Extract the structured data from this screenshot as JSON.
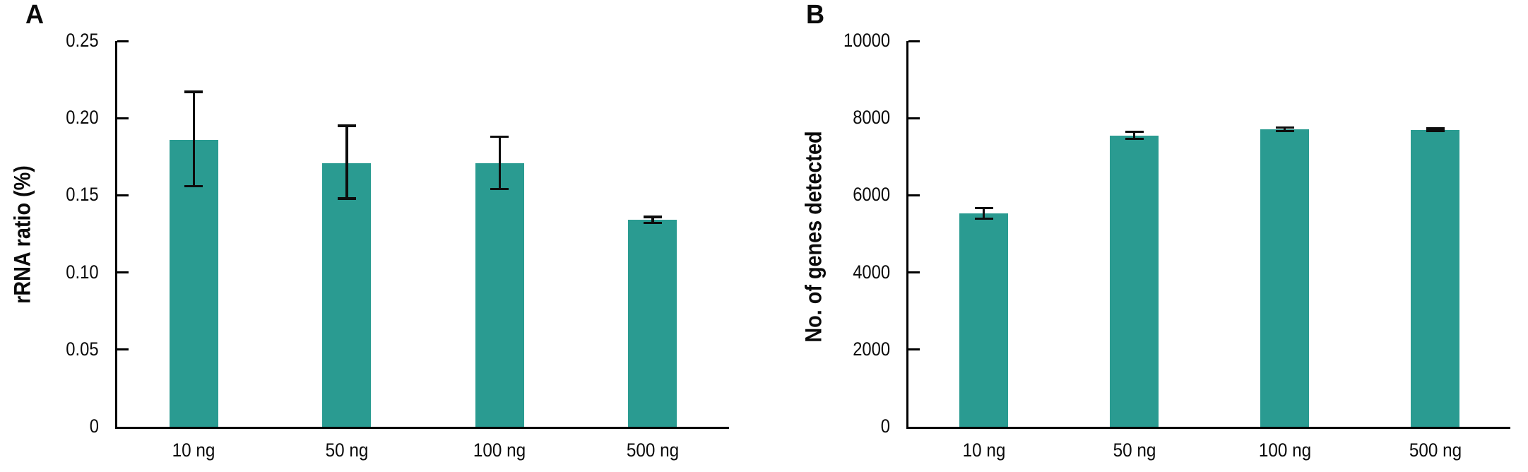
{
  "figure": {
    "background": "#ffffff",
    "panel_labels": [
      "A",
      "B"
    ]
  },
  "chart_data": [
    {
      "type": "bar",
      "panel": "A",
      "title": "",
      "xlabel": "",
      "ylabel": "rRNA ratio (%)",
      "categories": [
        "10 ng",
        "50 ng",
        "100 ng",
        "500 ng"
      ],
      "values": [
        0.186,
        0.171,
        0.171,
        0.134
      ],
      "error_low": [
        0.156,
        0.148,
        0.154,
        0.132
      ],
      "error_high": [
        0.217,
        0.195,
        0.188,
        0.136
      ],
      "ylim": [
        0,
        0.25
      ],
      "ytick_values": [
        0,
        0.05,
        0.1,
        0.15,
        0.2,
        0.25
      ],
      "ytick_labels": [
        "0",
        "0.05",
        "0.10",
        "0.15",
        "0.20",
        "0.25"
      ],
      "bar_color": "#2a9b91",
      "error_color": "#0d0d0d",
      "grid": false,
      "legend": null
    },
    {
      "type": "bar",
      "panel": "B",
      "title": "",
      "xlabel": "",
      "ylabel": "No. of genes detected",
      "categories": [
        "10 ng",
        "50 ng",
        "100 ng",
        "500 ng"
      ],
      "values": [
        5530,
        7550,
        7710,
        7700
      ],
      "error_low": [
        5390,
        7460,
        7665,
        7675
      ],
      "error_high": [
        5670,
        7650,
        7755,
        7730
      ],
      "ylim": [
        0,
        10000
      ],
      "ytick_values": [
        0,
        2000,
        4000,
        6000,
        8000,
        10000
      ],
      "ytick_labels": [
        "0",
        "2000",
        "4000",
        "6000",
        "8000",
        "10000"
      ],
      "bar_color": "#2a9b91",
      "error_color": "#0d0d0d",
      "grid": false,
      "legend": null
    }
  ]
}
